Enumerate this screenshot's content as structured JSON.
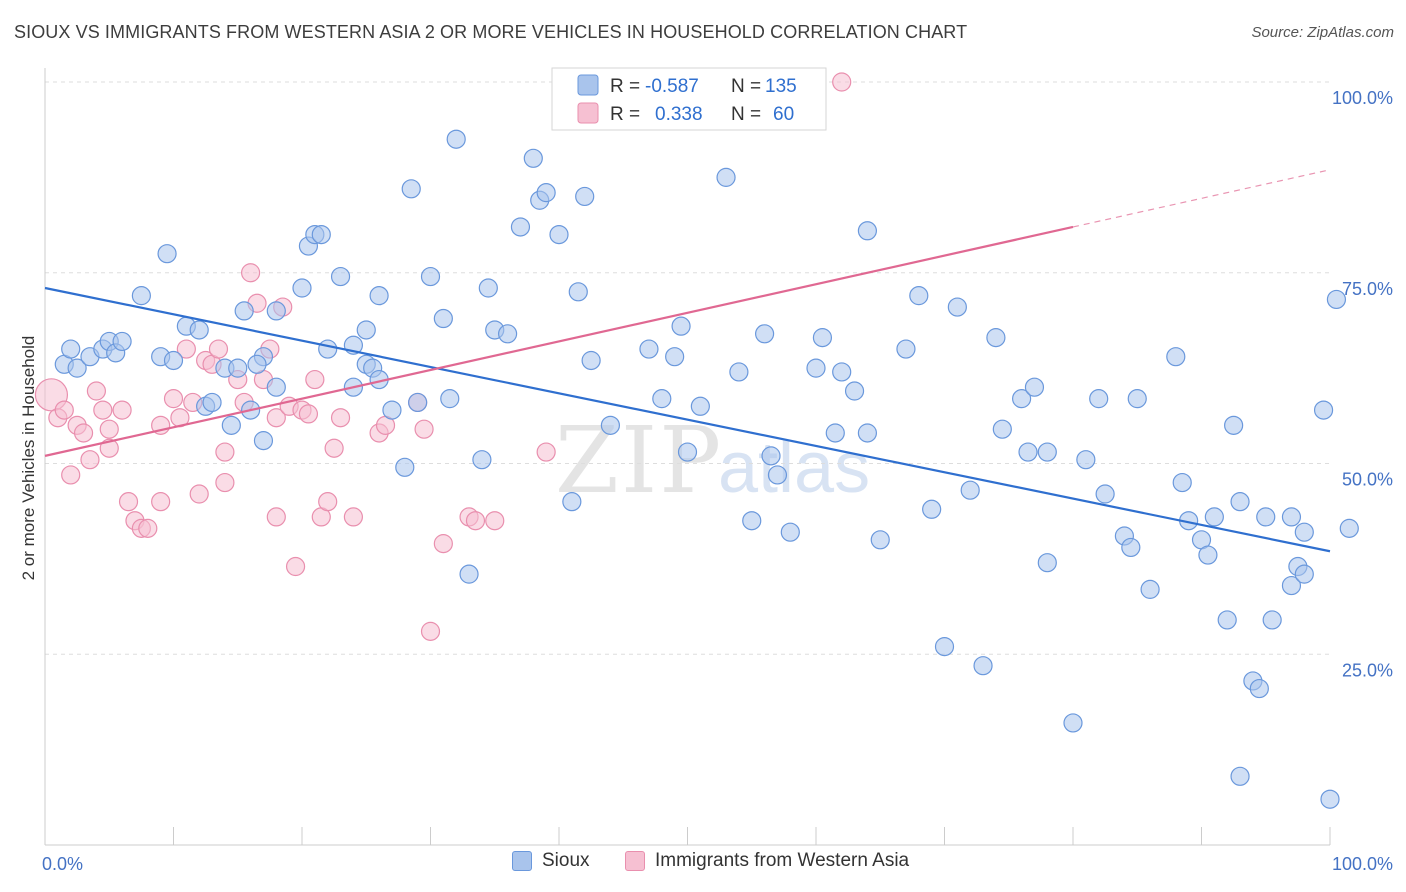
{
  "header": {
    "title": "SIOUX VS IMMIGRANTS FROM WESTERN ASIA 2 OR MORE VEHICLES IN HOUSEHOLD CORRELATION CHART",
    "source": "Source: ZipAtlas.com"
  },
  "watermark": {
    "zip": "ZIP",
    "atlas": "atlas"
  },
  "colors": {
    "sioux_fill": "#a9c4ec",
    "sioux_stroke": "#6a98dc",
    "sioux_line": "#2f6fcf",
    "wa_fill": "#f6c0d2",
    "wa_stroke": "#e98fae",
    "wa_line": "#e06892",
    "axis_label": "#4472c4"
  },
  "legend_top": {
    "rows": [
      {
        "r_label": "R =",
        "r_value": "-0.587",
        "n_label": "N =",
        "n_value": "135"
      },
      {
        "r_label": "R =",
        "r_value": "0.338",
        "n_label": "N =",
        "n_value": "60"
      }
    ]
  },
  "legend_bottom": {
    "items": [
      "Sioux",
      "Immigrants from Western Asia"
    ]
  },
  "chart_data": {
    "type": "scatter",
    "xlabel": "",
    "ylabel": "2 or more Vehicles in Household",
    "xlim": [
      0,
      100
    ],
    "ylim": [
      0,
      100
    ],
    "x_tick_labels": [
      "0.0%",
      "100.0%"
    ],
    "y_tick_labels": [
      "100.0%",
      "75.0%",
      "50.0%",
      "25.0%"
    ],
    "y_grid": [
      100,
      75,
      50,
      25
    ],
    "legend_position": "top-center",
    "series": [
      {
        "name": "Sioux",
        "r": -0.587,
        "n": 135,
        "trend": {
          "x": [
            0,
            100
          ],
          "y": [
            73.0,
            38.5
          ]
        },
        "points": [
          [
            1.5,
            63
          ],
          [
            2,
            65
          ],
          [
            2.5,
            62.5
          ],
          [
            3.5,
            64
          ],
          [
            4.5,
            65
          ],
          [
            5,
            66
          ],
          [
            5.5,
            64.5
          ],
          [
            6,
            66
          ],
          [
            7.5,
            72
          ],
          [
            9,
            64
          ],
          [
            10,
            63.5
          ],
          [
            9.5,
            77.5
          ],
          [
            11,
            68
          ],
          [
            12,
            67.5
          ],
          [
            12.5,
            57.5
          ],
          [
            13,
            58
          ],
          [
            14,
            62.5
          ],
          [
            14.5,
            55
          ],
          [
            15,
            62.5
          ],
          [
            15.5,
            70
          ],
          [
            16,
            57
          ],
          [
            17,
            53
          ],
          [
            17,
            64
          ],
          [
            18,
            70
          ],
          [
            18,
            60
          ],
          [
            16.5,
            63
          ],
          [
            20,
            73
          ],
          [
            20.5,
            78.5
          ],
          [
            21,
            80
          ],
          [
            21.5,
            80
          ],
          [
            22,
            65
          ],
          [
            23,
            74.5
          ],
          [
            24,
            60
          ],
          [
            24,
            65.5
          ],
          [
            25,
            67.5
          ],
          [
            25,
            63
          ],
          [
            25.5,
            62.5
          ],
          [
            26,
            61
          ],
          [
            26,
            72
          ],
          [
            27,
            57
          ],
          [
            28,
            49.5
          ],
          [
            28.5,
            86
          ],
          [
            29,
            58
          ],
          [
            30,
            74.5
          ],
          [
            31,
            69
          ],
          [
            31.5,
            58.5
          ],
          [
            32,
            92.5
          ],
          [
            33,
            35.5
          ],
          [
            34,
            50.5
          ],
          [
            34.5,
            73
          ],
          [
            35,
            67.5
          ],
          [
            36,
            67
          ],
          [
            37,
            81
          ],
          [
            38,
            90
          ],
          [
            38.5,
            84.5
          ],
          [
            39,
            85.5
          ],
          [
            40,
            80
          ],
          [
            41,
            45
          ],
          [
            41.5,
            72.5
          ],
          [
            42,
            85
          ],
          [
            42.5,
            63.5
          ],
          [
            44,
            55
          ],
          [
            47,
            65
          ],
          [
            48,
            58.5
          ],
          [
            49,
            64
          ],
          [
            49.5,
            68
          ],
          [
            50,
            51.5
          ],
          [
            51,
            57.5
          ],
          [
            53,
            87.5
          ],
          [
            54,
            62
          ],
          [
            55,
            42.5
          ],
          [
            56,
            67
          ],
          [
            56.5,
            51
          ],
          [
            57,
            48.5
          ],
          [
            58,
            41
          ],
          [
            60,
            62.5
          ],
          [
            60.5,
            66.5
          ],
          [
            61.5,
            54
          ],
          [
            62,
            62
          ],
          [
            63,
            59.5
          ],
          [
            64,
            80.5
          ],
          [
            64,
            54
          ],
          [
            65,
            40
          ],
          [
            67,
            65
          ],
          [
            68,
            72
          ],
          [
            69,
            44
          ],
          [
            70,
            26
          ],
          [
            71,
            70.5
          ],
          [
            72,
            46.5
          ],
          [
            73,
            23.5
          ],
          [
            74,
            66.5
          ],
          [
            74.5,
            54.5
          ],
          [
            76,
            58.5
          ],
          [
            76.5,
            51.5
          ],
          [
            77,
            60
          ],
          [
            78,
            37
          ],
          [
            78,
            51.5
          ],
          [
            80,
            16
          ],
          [
            81,
            50.5
          ],
          [
            82,
            58.5
          ],
          [
            82.5,
            46
          ],
          [
            84,
            40.5
          ],
          [
            84.5,
            39
          ],
          [
            85,
            58.5
          ],
          [
            86,
            33.5
          ],
          [
            88,
            64
          ],
          [
            88.5,
            47.5
          ],
          [
            89,
            42.5
          ],
          [
            90,
            40
          ],
          [
            90.5,
            38
          ],
          [
            91,
            43
          ],
          [
            92,
            29.5
          ],
          [
            92.5,
            55
          ],
          [
            93,
            45
          ],
          [
            94,
            21.5
          ],
          [
            94.5,
            20.5
          ],
          [
            93,
            9
          ],
          [
            95,
            43
          ],
          [
            95.5,
            29.5
          ],
          [
            97,
            34
          ],
          [
            97,
            43
          ],
          [
            98,
            41
          ],
          [
            99.5,
            57
          ],
          [
            97.5,
            36.5
          ],
          [
            98,
            35.5
          ],
          [
            100,
            6
          ],
          [
            100.5,
            71.5
          ],
          [
            101.5,
            41.5
          ]
        ]
      },
      {
        "name": "Immigrants from Western Asia",
        "r": 0.338,
        "n": 60,
        "trend": {
          "x": [
            0,
            80
          ],
          "y": [
            51.0,
            81.0
          ]
        },
        "trend_dashed": {
          "x": [
            80,
            100
          ],
          "y": [
            81.0,
            88.5
          ]
        },
        "points": [
          [
            0.5,
            59
          ],
          [
            1,
            56
          ],
          [
            1.5,
            57
          ],
          [
            2,
            48.5
          ],
          [
            2.5,
            55
          ],
          [
            3,
            54
          ],
          [
            3.5,
            50.5
          ],
          [
            4,
            59.5
          ],
          [
            4.5,
            57
          ],
          [
            5,
            52
          ],
          [
            5,
            54.5
          ],
          [
            6,
            57
          ],
          [
            6.5,
            45
          ],
          [
            7,
            42.5
          ],
          [
            7.5,
            41.5
          ],
          [
            8,
            41.5
          ],
          [
            9,
            55
          ],
          [
            9,
            45
          ],
          [
            10,
            58.5
          ],
          [
            10.5,
            56
          ],
          [
            11,
            65
          ],
          [
            11.5,
            58
          ],
          [
            12,
            46
          ],
          [
            12.5,
            63.5
          ],
          [
            13,
            63
          ],
          [
            13.5,
            65
          ],
          [
            14,
            51.5
          ],
          [
            14,
            47.5
          ],
          [
            15,
            61
          ],
          [
            15.5,
            58
          ],
          [
            16,
            75
          ],
          [
            16.5,
            71
          ],
          [
            17,
            61
          ],
          [
            17.5,
            65
          ],
          [
            18,
            43
          ],
          [
            18,
            56
          ],
          [
            18.5,
            70.5
          ],
          [
            19,
            57.5
          ],
          [
            19.5,
            36.5
          ],
          [
            20,
            57
          ],
          [
            20.5,
            56.5
          ],
          [
            21,
            61
          ],
          [
            21.5,
            43
          ],
          [
            22,
            45
          ],
          [
            22.5,
            52
          ],
          [
            23,
            56
          ],
          [
            24,
            43
          ],
          [
            26,
            54
          ],
          [
            26.5,
            55
          ],
          [
            29,
            58
          ],
          [
            29.5,
            54.5
          ],
          [
            30,
            28
          ],
          [
            31,
            39.5
          ],
          [
            33,
            43
          ],
          [
            33.5,
            42.5
          ],
          [
            35,
            42.5
          ],
          [
            39,
            51.5
          ],
          [
            62,
            100
          ]
        ]
      }
    ]
  }
}
